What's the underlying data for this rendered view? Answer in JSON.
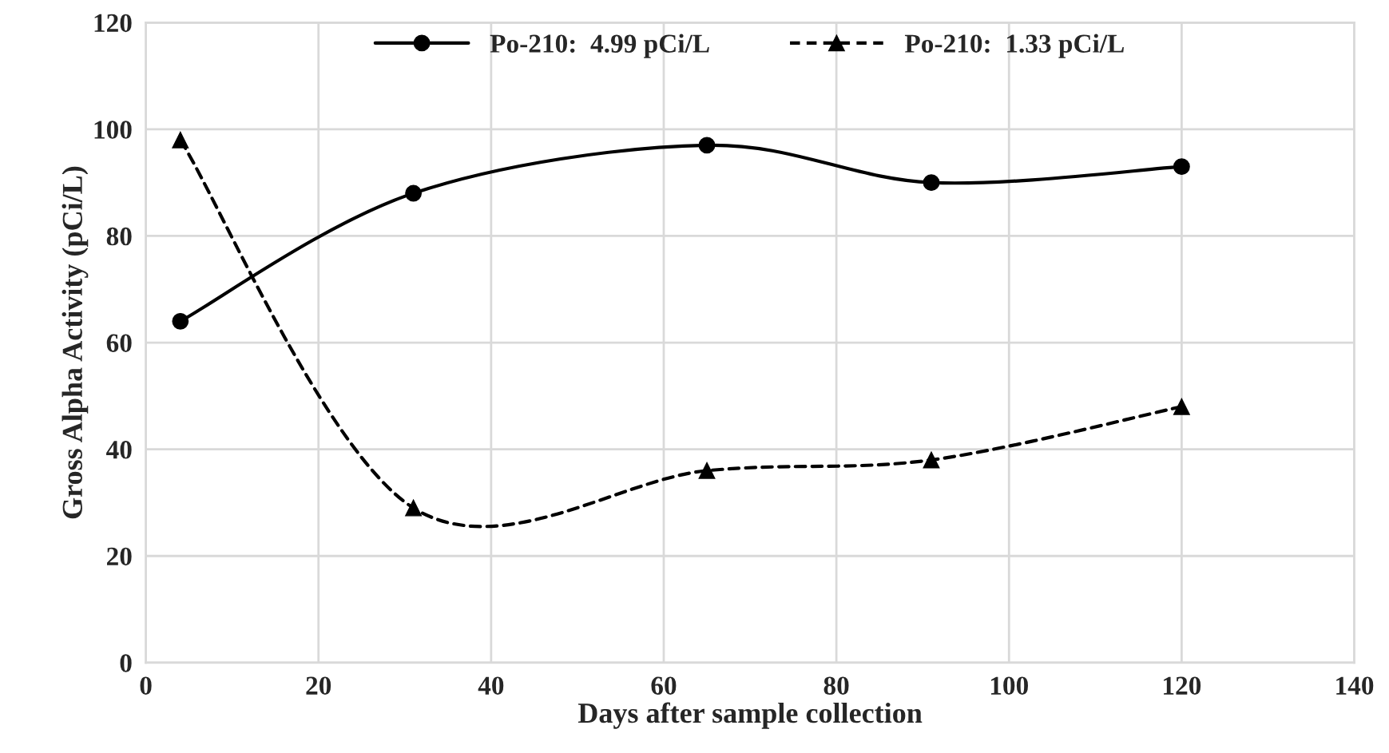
{
  "chart_data": {
    "type": "line",
    "xlabel": "Days after sample collection",
    "ylabel": "Gross Alpha Activity (pCi/L)",
    "x": [
      4,
      31,
      65,
      91,
      120
    ],
    "series": [
      {
        "name": "Po-210:  4.99 pCi/L",
        "color": "#000000",
        "values": [
          64,
          88,
          97,
          90,
          93
        ],
        "marker": "circle",
        "line_style": "solid"
      },
      {
        "name": "Po-210:  1.33 pCi/L",
        "color": "#000000",
        "values": [
          98,
          29,
          36,
          38,
          48
        ],
        "marker": "triangle",
        "line_style": "dashed"
      }
    ],
    "xlim": [
      0,
      140
    ],
    "xticks": [
      0,
      20,
      40,
      60,
      80,
      100,
      120,
      140
    ],
    "ylim": [
      0,
      120
    ],
    "yticks": [
      0,
      20,
      40,
      60,
      80,
      100,
      120
    ],
    "grid": true,
    "legend": "top"
  }
}
